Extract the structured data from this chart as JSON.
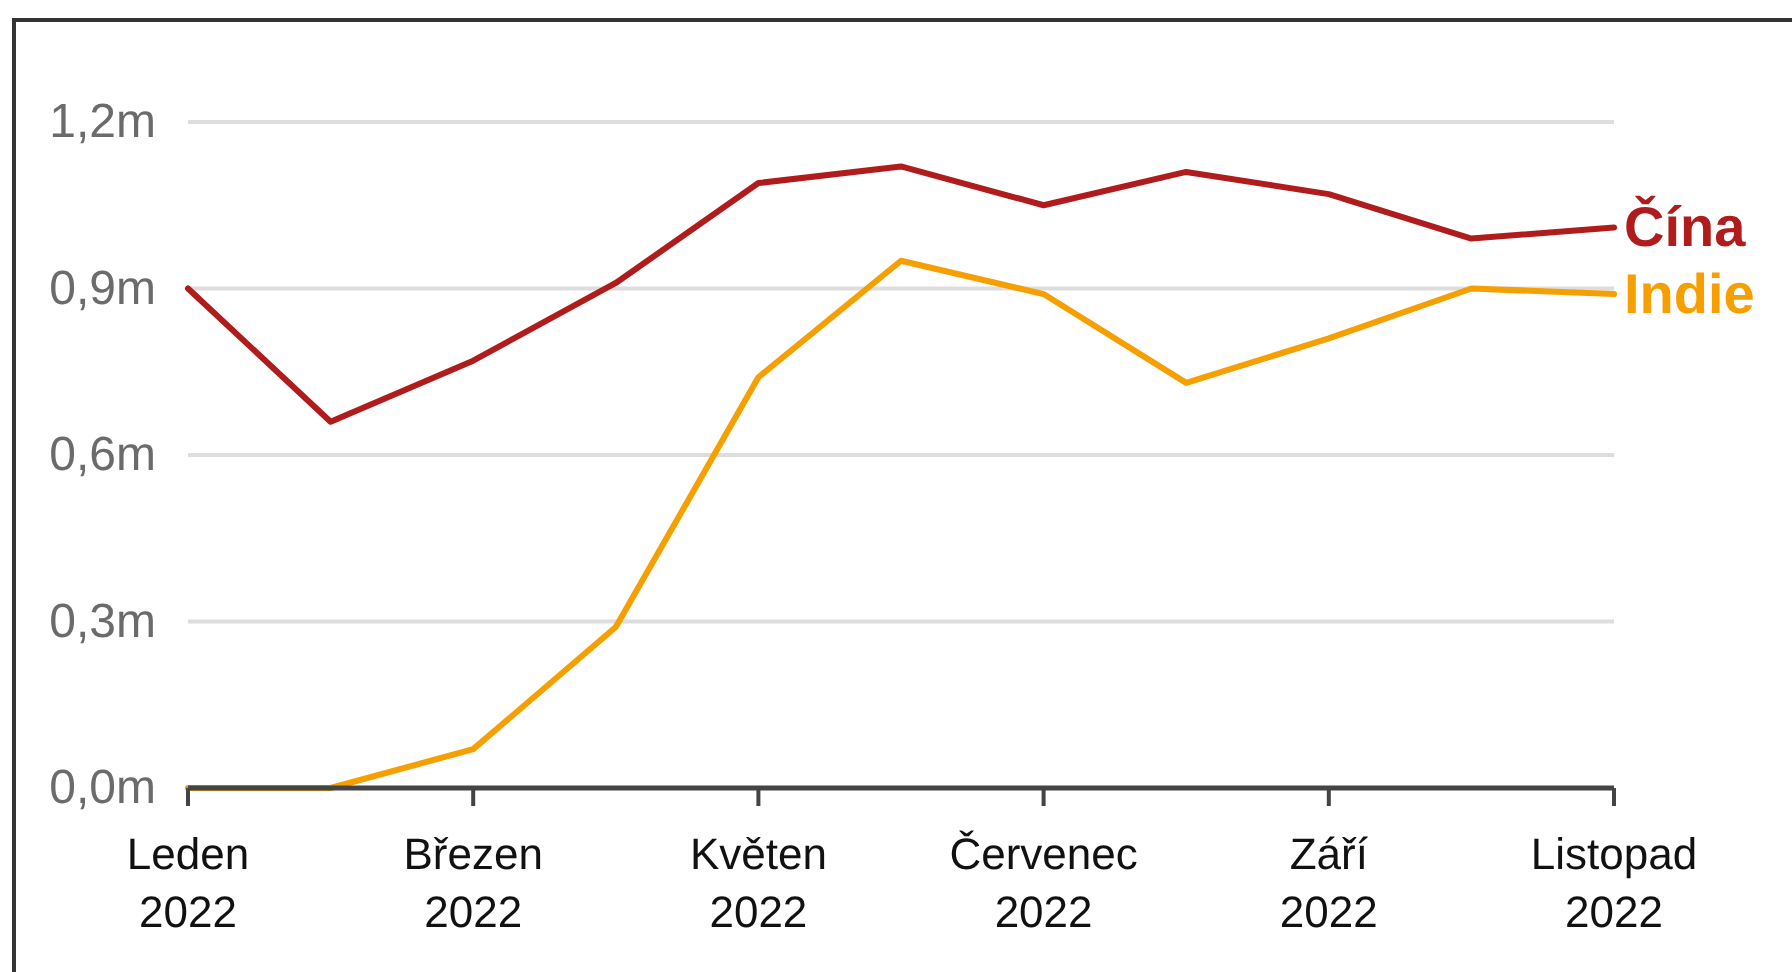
{
  "chart_data": {
    "type": "line",
    "categories": [
      "Leden 2022",
      null,
      "Březen 2022",
      null,
      "Květen 2022",
      null,
      "Červenec 2022",
      null,
      "Září 2022",
      null,
      "Listopad 2022"
    ],
    "series": [
      {
        "name": "Čína",
        "color": "#b01c1c",
        "values": [
          0.9,
          0.66,
          0.77,
          0.91,
          1.09,
          1.12,
          1.05,
          1.11,
          1.07,
          0.99,
          1.01
        ]
      },
      {
        "name": "Indie",
        "color": "#f5a000",
        "values": [
          0,
          0,
          0.07,
          0.29,
          0.74,
          0.95,
          0.89,
          0.73,
          0.81,
          0.9,
          0.89
        ]
      }
    ],
    "ylim": [
      0,
      1.2
    ],
    "yticks": [
      {
        "value": 0,
        "label": "0,0m"
      },
      {
        "value": 0.3,
        "label": "0,3m"
      },
      {
        "value": 0.6,
        "label": "0,6m"
      },
      {
        "value": 0.9,
        "label": "0,9m"
      },
      {
        "value": 1.2,
        "label": "1,2m"
      }
    ],
    "grid": "y"
  }
}
